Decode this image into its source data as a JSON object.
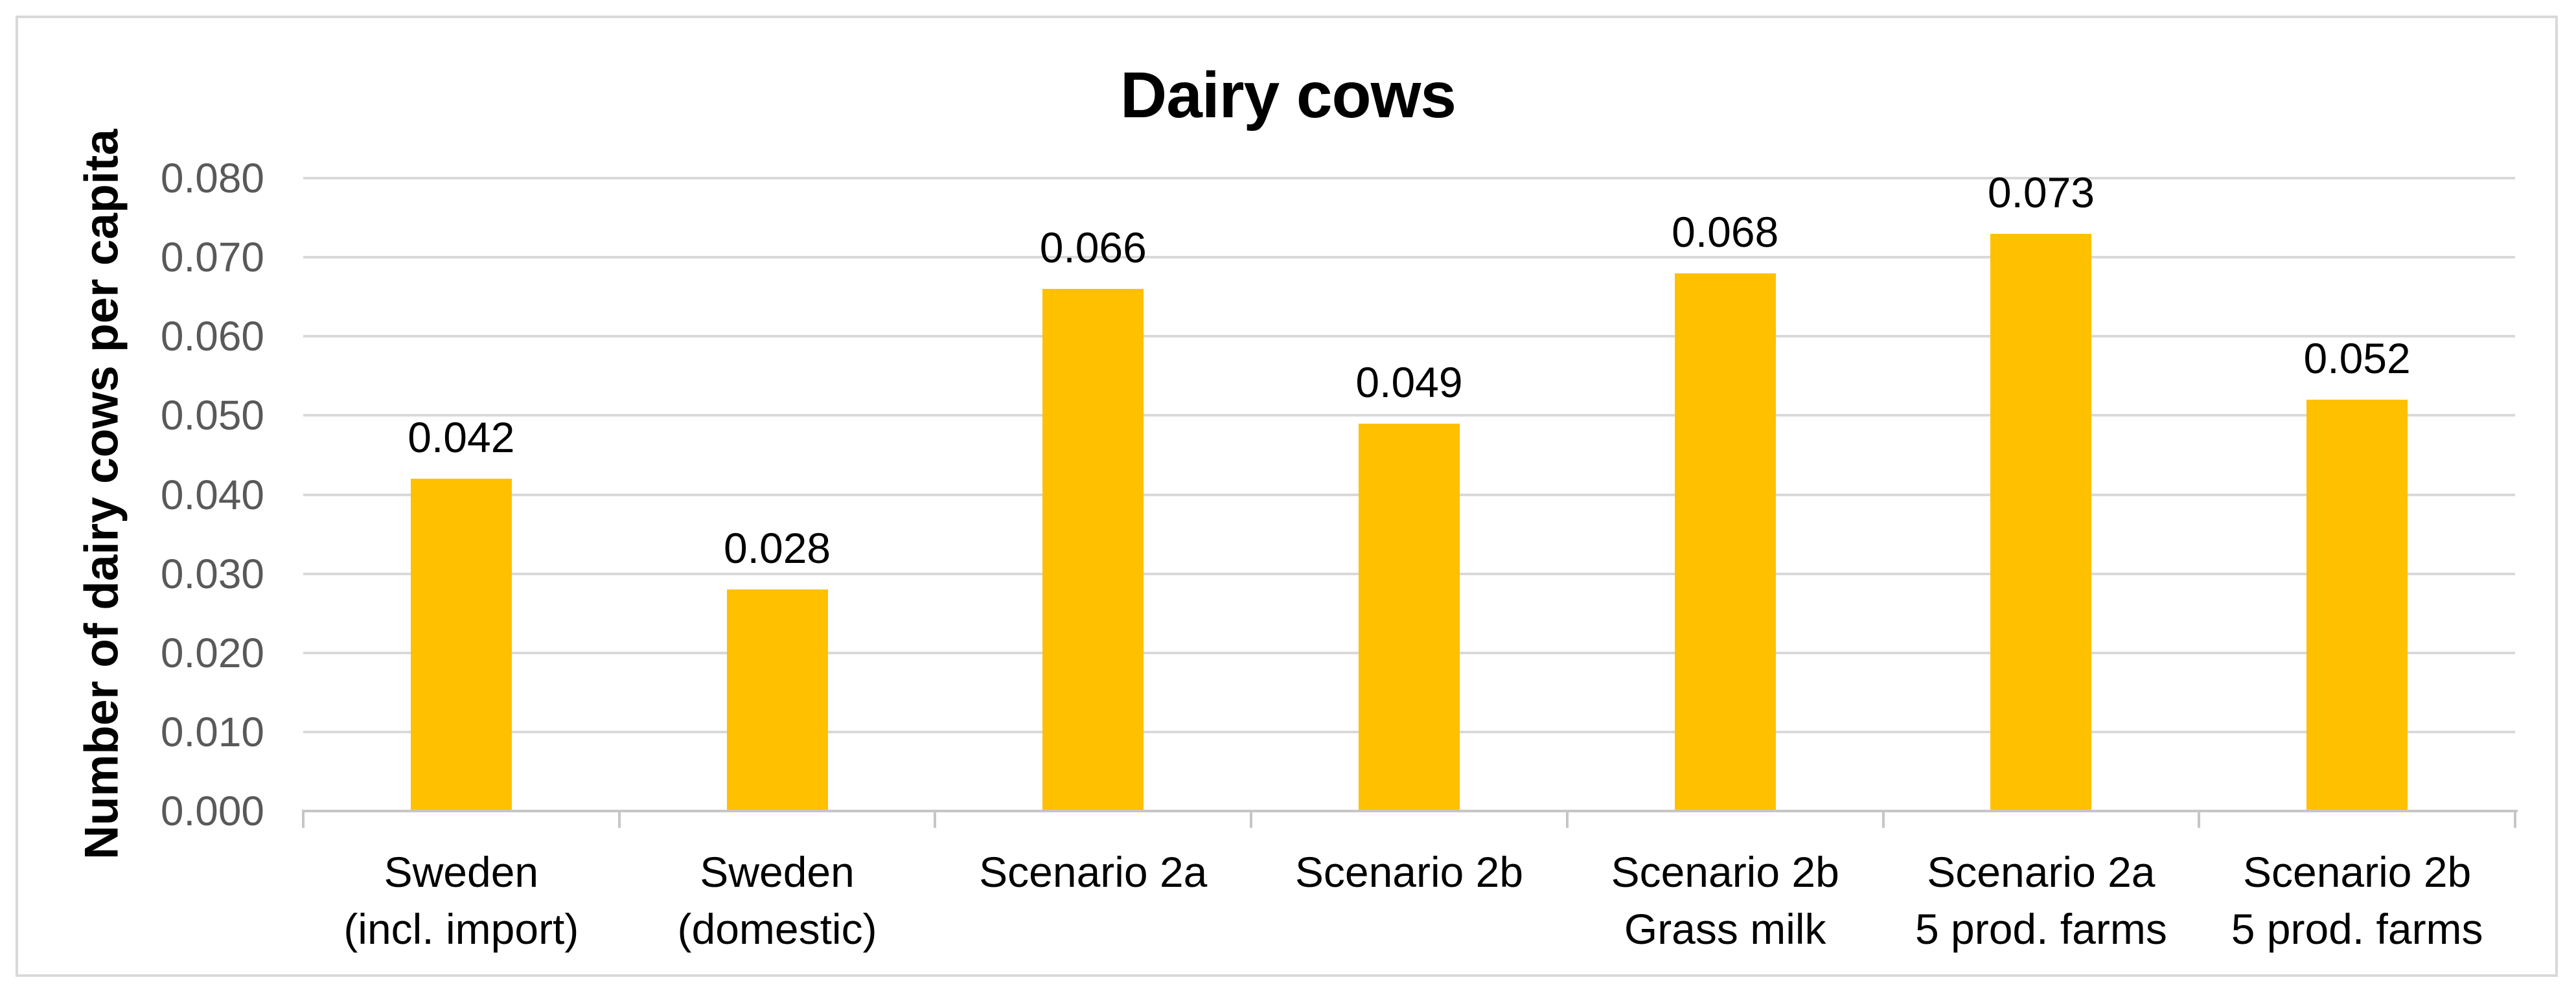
{
  "chart_data": {
    "type": "bar",
    "title": "Dairy cows",
    "ylabel": "Number of dairy cows per capita",
    "xlabel": "",
    "categories": [
      "Sweden (incl. import)",
      "Sweden (domestic)",
      "Scenario 2a",
      "Scenario 2b",
      "Scenario 2b Grass milk",
      "Scenario 2a 5 prod. farms",
      "Scenario 2b 5 prod. farms"
    ],
    "category_lines": [
      [
        "Sweden",
        "(incl. import)"
      ],
      [
        "Sweden",
        "(domestic)"
      ],
      [
        "Scenario 2a"
      ],
      [
        "Scenario 2b"
      ],
      [
        "Scenario 2b",
        "Grass milk"
      ],
      [
        "Scenario 2a",
        "5 prod. farms"
      ],
      [
        "Scenario 2b",
        "5 prod. farms"
      ]
    ],
    "values": [
      0.042,
      0.028,
      0.066,
      0.049,
      0.068,
      0.073,
      0.052
    ],
    "data_labels": [
      "0.042",
      "0.028",
      "0.066",
      "0.049",
      "0.068",
      "0.073",
      "0.052"
    ],
    "ylim": [
      0.0,
      0.08
    ],
    "ytick_step": 0.01,
    "ytick_labels": [
      "0.000",
      "0.010",
      "0.020",
      "0.030",
      "0.040",
      "0.050",
      "0.060",
      "0.070",
      "0.080"
    ],
    "grid": true,
    "legend": "none",
    "colors": {
      "bar": "#FFC000",
      "gridline": "#D9D9D9",
      "axis_line": "#C6C6C6",
      "ytick_label": "#595959",
      "text": "#000000",
      "frame_border": "#D9D9D9",
      "background": "#FFFFFF"
    }
  }
}
